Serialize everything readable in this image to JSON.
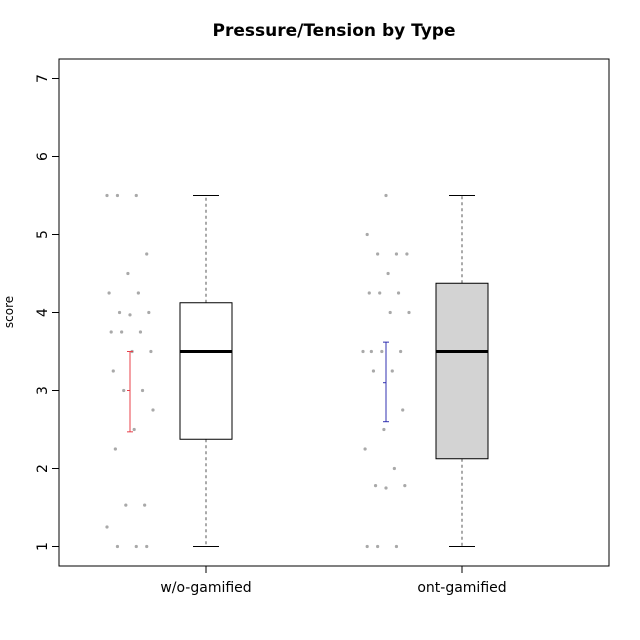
{
  "chart_data": {
    "type": "box",
    "title": "Pressure/Tension by Type",
    "xlabel": "",
    "ylabel": "score",
    "ylim": [
      0.75,
      7.25
    ],
    "yticks": [
      1,
      2,
      3,
      4,
      5,
      6,
      7
    ],
    "ytick_labels": [
      "1",
      "2",
      "3",
      "4",
      "5",
      "6",
      "7"
    ],
    "categories": [
      "w/o-gamified",
      "ont-gamified"
    ],
    "boxes": [
      {
        "category": "w/o-gamified",
        "min": 1.0,
        "q1": 2.375,
        "median": 3.5,
        "q3": 4.125,
        "max": 5.5,
        "fill": "#ffffff",
        "mean": 3.0,
        "ci_low": 2.47,
        "ci_high": 3.5,
        "ci_color": "#e8404a",
        "points": [
          5.5,
          5.5,
          5.5,
          4.75,
          4.5,
          4.25,
          4.25,
          4.0,
          4.0,
          3.97,
          3.75,
          3.75,
          3.75,
          3.5,
          3.5,
          3.25,
          3.0,
          3.0,
          2.75,
          2.5,
          2.25,
          1.53,
          1.53,
          1.25,
          1.0,
          1.0,
          1.0
        ]
      },
      {
        "category": "ont-gamified",
        "min": 1.0,
        "q1": 2.125,
        "median": 3.5,
        "q3": 4.375,
        "max": 5.5,
        "fill": "#d3d3d3",
        "mean": 3.1,
        "ci_low": 2.6,
        "ci_high": 3.62,
        "ci_color": "#3030b0",
        "points": [
          5.5,
          5.0,
          4.75,
          4.75,
          4.75,
          4.5,
          4.25,
          4.25,
          4.25,
          4.0,
          4.0,
          3.5,
          3.5,
          3.5,
          3.5,
          3.25,
          3.25,
          2.75,
          2.5,
          2.25,
          2.0,
          1.78,
          1.78,
          1.75,
          1.0,
          1.0,
          1.0
        ]
      }
    ],
    "point_color": "#a9a9a9",
    "grid": false,
    "legend": "none"
  }
}
